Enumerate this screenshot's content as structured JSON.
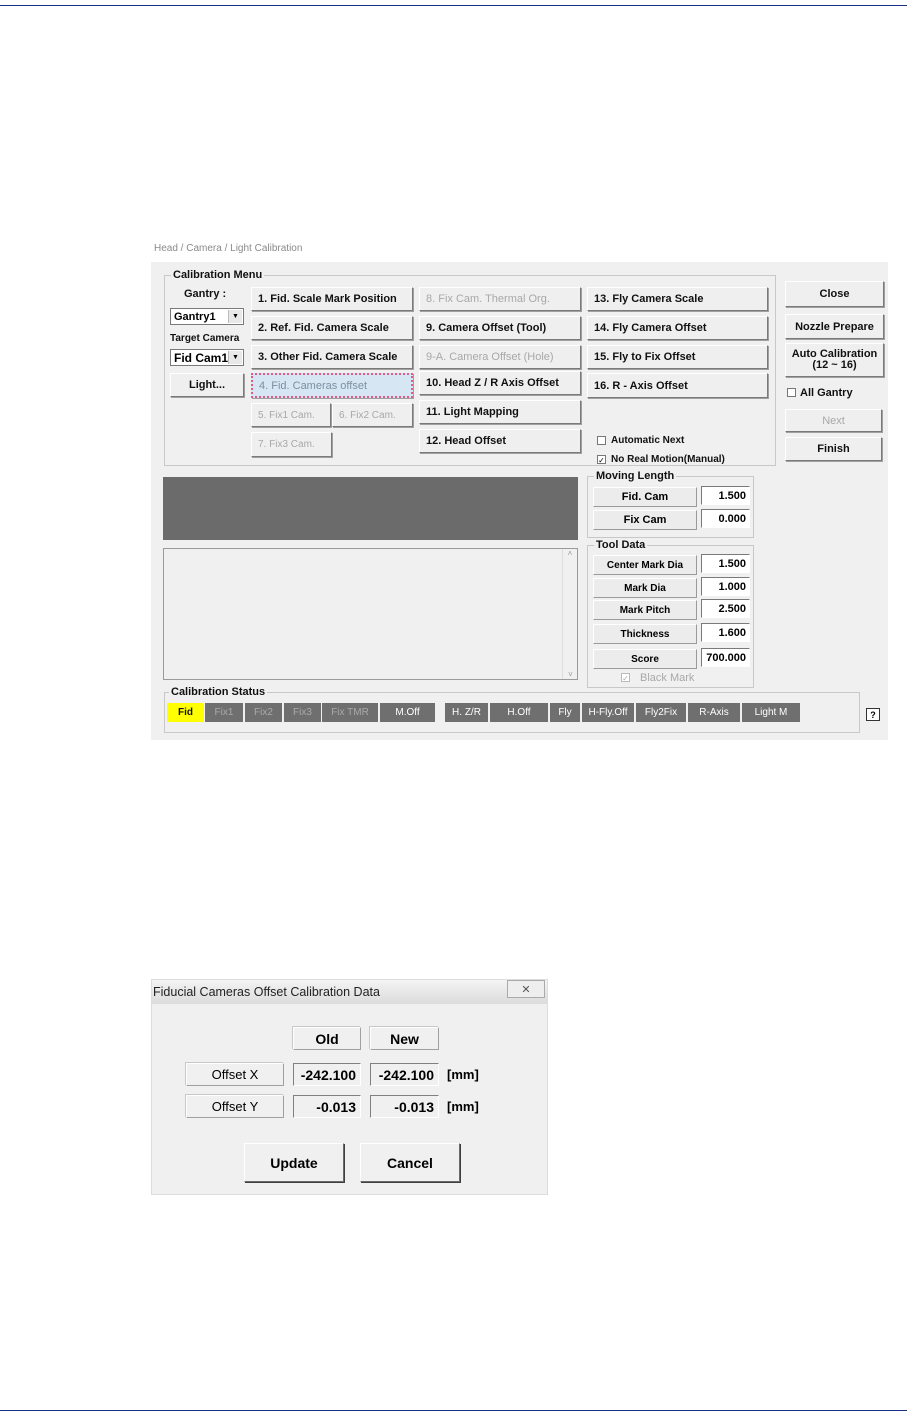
{
  "calibration_window": {
    "breadcrumb": "Head / Camera / Light Calibration",
    "menu_group_title": "Calibration Menu",
    "gantry_label": "Gantry :",
    "gantry_value": "Gantry1",
    "target_camera_label": "Target Camera",
    "target_camera_value": "Fid Cam1",
    "light_button": "Light...",
    "menu_buttons": [
      {
        "label": "1. Fid. Scale Mark Position",
        "state": "enabled"
      },
      {
        "label": "2. Ref. Fid. Camera Scale",
        "state": "enabled"
      },
      {
        "label": "3. Other Fid. Camera Scale",
        "state": "enabled"
      },
      {
        "label": "4. Fid. Cameras offset",
        "state": "selected"
      },
      {
        "label": "5. Fix1 Cam.",
        "state": "disabled"
      },
      {
        "label": "6. Fix2 Cam.",
        "state": "disabled"
      },
      {
        "label": "7. Fix3 Cam.",
        "state": "disabled"
      },
      {
        "label": "8. Fix Cam. Thermal Org.",
        "state": "disabled"
      },
      {
        "label": "9. Camera Offset (Tool)",
        "state": "enabled"
      },
      {
        "label": "9-A. Camera Offset (Hole)",
        "state": "disabled"
      },
      {
        "label": "10. Head Z / R Axis Offset",
        "state": "enabled"
      },
      {
        "label": "11. Light Mapping",
        "state": "enabled"
      },
      {
        "label": "12. Head Offset",
        "state": "enabled"
      },
      {
        "label": "13. Fly Camera Scale",
        "state": "enabled"
      },
      {
        "label": "14. Fly Camera Offset",
        "state": "enabled"
      },
      {
        "label": "15. Fly to Fix Offset",
        "state": "enabled"
      },
      {
        "label": "16. R - Axis Offset",
        "state": "enabled"
      }
    ],
    "automatic_next": {
      "label": "Automatic Next",
      "checked": false
    },
    "no_real_motion": {
      "label": "No Real Motion(Manual)",
      "checked": true
    },
    "side_buttons": {
      "close": "Close",
      "nozzle_prepare": "Nozzle Prepare",
      "auto_calibration": "Auto Calibration",
      "auto_calibration_sub": "(12 ~ 16)",
      "next": "Next",
      "finish": "Finish"
    },
    "all_gantry": {
      "label": "All Gantry",
      "checked": false
    },
    "moving_length": {
      "title": "Moving Length",
      "rows": [
        {
          "label": "Fid. Cam",
          "value": "1.500"
        },
        {
          "label": "Fix Cam",
          "value": "0.000"
        }
      ]
    },
    "tool_data": {
      "title": "Tool Data",
      "rows": [
        {
          "label": "Center Mark Dia",
          "value": "1.500"
        },
        {
          "label": "Mark Dia",
          "value": "1.000"
        },
        {
          "label": "Mark Pitch",
          "value": "2.500"
        },
        {
          "label": "Thickness",
          "value": "1.600"
        },
        {
          "label": "Score",
          "value": "700.000"
        }
      ],
      "black_mark": {
        "label": "Black Mark",
        "checked": true
      }
    },
    "status": {
      "title": "Calibration Status",
      "cells": [
        {
          "label": "Fid",
          "state": "active"
        },
        {
          "label": "Fix1",
          "state": "dim"
        },
        {
          "label": "Fix2",
          "state": "dim"
        },
        {
          "label": "Fix3",
          "state": "dim"
        },
        {
          "label": "Fix TMR",
          "state": "dim"
        },
        {
          "label": "M.Off",
          "state": "normal"
        },
        {
          "label": "H. Z/R",
          "state": "normal"
        },
        {
          "label": "H.Off",
          "state": "normal"
        },
        {
          "label": "Fly",
          "state": "normal"
        },
        {
          "label": "H-Fly.Off",
          "state": "normal"
        },
        {
          "label": "Fly2Fix",
          "state": "normal"
        },
        {
          "label": "R-Axis",
          "state": "normal"
        },
        {
          "label": "Light M",
          "state": "normal"
        }
      ],
      "active_color": "#ffff00",
      "cell_color": "#6f6f6f"
    },
    "help_button": "?"
  },
  "offset_dialog": {
    "title": "Fiducial Cameras Offset Calibration Data",
    "close_icon": "close-x-icon",
    "col_old": "Old",
    "col_new": "New",
    "rows": [
      {
        "label": "Offset X",
        "old": "-242.100",
        "new": "-242.100",
        "unit": "[mm]"
      },
      {
        "label": "Offset Y",
        "old": "-0.013",
        "new": "-0.013",
        "unit": "[mm]"
      }
    ],
    "update_button": "Update",
    "cancel_button": "Cancel"
  }
}
